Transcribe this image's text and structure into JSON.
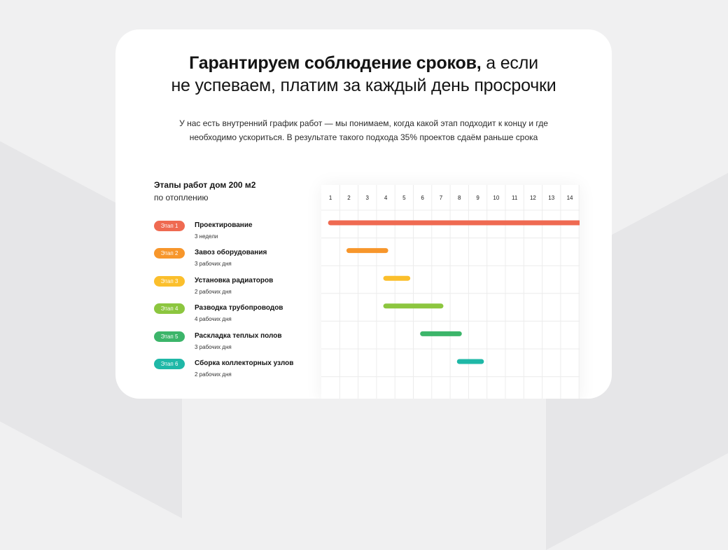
{
  "headline": {
    "bold": "Гарантируем соблюдение сроков,",
    "rest": " а если",
    "line2": "не успеваем, платим за каждый день просрочки"
  },
  "subtitle": {
    "line1": "У нас есть внутренний график работ — мы понимаем, когда какой этап подходит к концу и где",
    "line2": "необходимо ускориться. В результате такого подхода 35% проектов сдаём раньше срока"
  },
  "stages_header": {
    "title": "Этапы работ дом 200 м2",
    "subtitle": "по отоплению"
  },
  "days": [
    "1",
    "2",
    "3",
    "4",
    "5",
    "6",
    "7",
    "8",
    "9",
    "10",
    "11",
    "12",
    "13",
    "14"
  ],
  "stages": [
    {
      "badge": "Этап 1",
      "name": "Проектирование",
      "duration": "3 недели",
      "color": "#ef6a51",
      "start": 1,
      "end": 14.5
    },
    {
      "badge": "Этап 2",
      "name": "Завоз оборудования",
      "duration": "3 рабочих дня",
      "color": "#f7962b",
      "start": 2,
      "end": 4
    },
    {
      "badge": "Этап 3",
      "name": "Установка радиаторов",
      "duration": "2 рабочих дня",
      "color": "#fbbf2c",
      "start": 4,
      "end": 5.2
    },
    {
      "badge": "Этап 4",
      "name": "Разводка трубопроводов",
      "duration": "4 рабочих дня",
      "color": "#8cc63f",
      "start": 4,
      "end": 7
    },
    {
      "badge": "Этап 5",
      "name": "Раскладка теплых полов",
      "duration": "3 рабочих дня",
      "color": "#3cb56a",
      "start": 6,
      "end": 8
    },
    {
      "badge": "Этап 6",
      "name": "Сборка коллекторных узлов",
      "duration": "2 рабочих дня",
      "color": "#1fb8a7",
      "start": 8,
      "end": 9.2
    }
  ]
}
